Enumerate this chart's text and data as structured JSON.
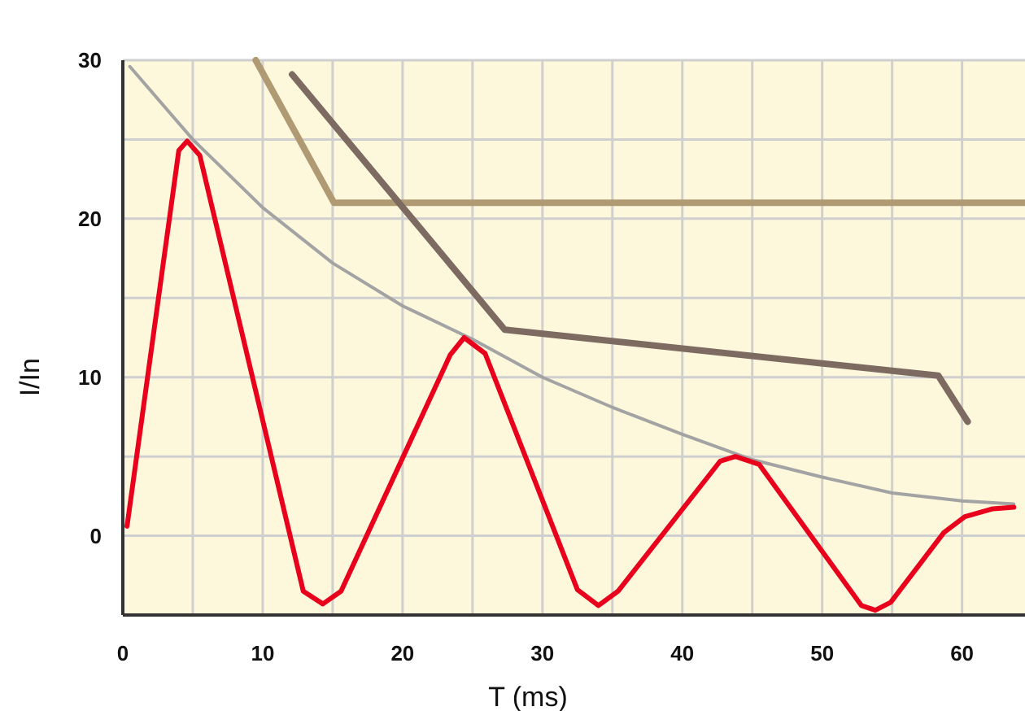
{
  "chart_data": {
    "type": "line",
    "xlabel": "T (ms)",
    "ylabel": "I/In",
    "xlim": [
      0,
      64.5
    ],
    "ylim": [
      -5,
      30
    ],
    "xticks": [
      0,
      {
        "value": 5,
        "label": null
      },
      10,
      {
        "value": 15,
        "label": null
      },
      20,
      {
        "value": 25,
        "label": null
      },
      30,
      {
        "value": 35,
        "label": null
      },
      40,
      {
        "value": 45,
        "label": null
      },
      50,
      {
        "value": 55,
        "label": null
      },
      60
    ],
    "yticks": [
      0,
      {
        "value": 5,
        "label": null
      },
      10,
      {
        "value": 15,
        "label": null
      },
      20,
      {
        "value": 25,
        "label": null
      },
      30
    ],
    "grid": true,
    "series": [
      {
        "color": "#b09a74",
        "x": [
          9.5,
          15.1,
          64.5
        ],
        "values": [
          30,
          21,
          21
        ]
      },
      {
        "color": "#7d6b62",
        "x": [
          12.1,
          27.3,
          58.3,
          60.4
        ],
        "values": [
          29.1,
          13,
          10.1,
          7.2
        ]
      },
      {
        "color": "#a3a3a3",
        "x": [
          0.5,
          5,
          10,
          15,
          20,
          25,
          30,
          35,
          40,
          45,
          50,
          55,
          60,
          63.7
        ],
        "values": [
          29.6,
          25,
          20.7,
          17.2,
          14.5,
          12.4,
          10,
          8.1,
          6.4,
          4.8,
          3.7,
          2.7,
          2.2,
          2
        ]
      },
      {
        "color": "#e8001c",
        "x": [
          0.3,
          4,
          4.6,
          5.5,
          12.9,
          14.3,
          15.6,
          23.4,
          24.4,
          25.9,
          32.5,
          34,
          35.4,
          42.7,
          43.8,
          45.5,
          52.8,
          53.8,
          54.9,
          58.7,
          60.2,
          62.2,
          63.7
        ],
        "values": [
          0.6,
          24.3,
          24.9,
          24,
          -3.5,
          -4.3,
          -3.5,
          11.4,
          12.5,
          11.5,
          -3.4,
          -4.4,
          -3.5,
          4.7,
          5,
          4.5,
          -4.4,
          -4.7,
          -4.2,
          0.2,
          1.2,
          1.7,
          1.8
        ]
      }
    ]
  }
}
